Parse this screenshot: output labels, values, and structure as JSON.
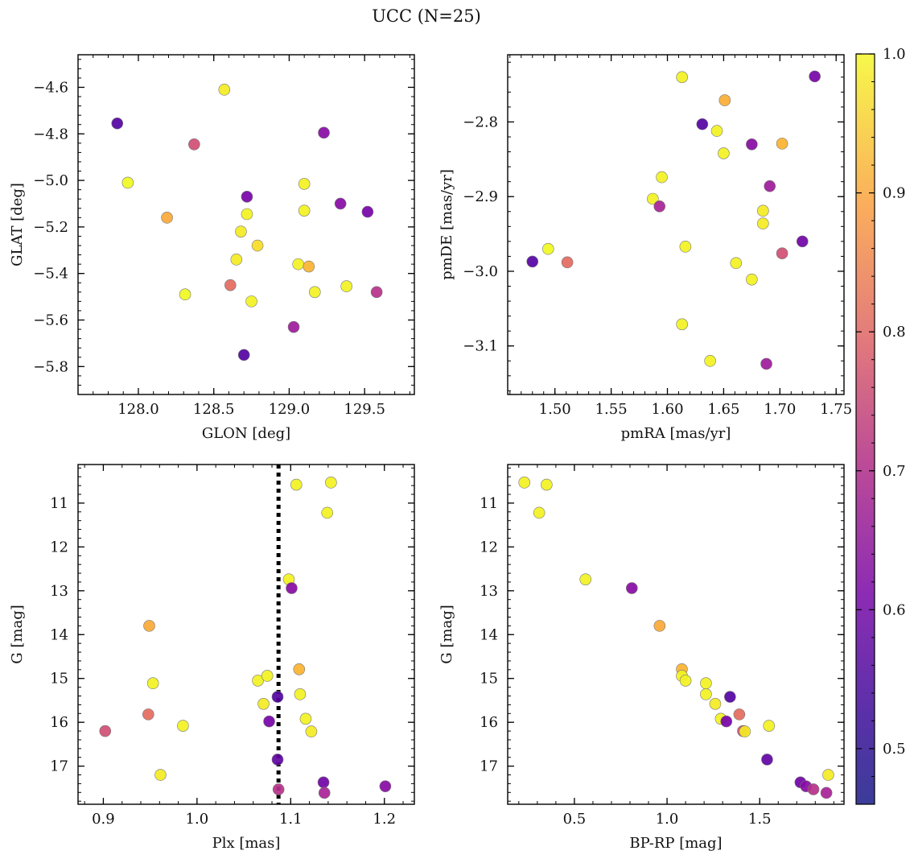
{
  "figure": {
    "title": "UCC (N=25)"
  },
  "colorbar": {
    "range": [
      0.46,
      1.0
    ],
    "ticks": [
      0.5,
      0.6,
      0.7,
      0.8,
      0.9,
      1.0
    ],
    "tick_labels": [
      "0.5",
      "0.6",
      "0.7",
      "0.8",
      "0.9",
      "1.0"
    ],
    "colormap": "plasma"
  },
  "chart_data": [
    {
      "type": "scatter",
      "id": "glon-glat",
      "xlabel": "GLON [deg]",
      "ylabel": "GLAT [deg]",
      "xlim": [
        127.6,
        129.83
      ],
      "ylim": [
        -5.92,
        -4.46
      ],
      "y_inverted": false,
      "xticks": [
        128.0,
        128.5,
        129.0,
        129.5
      ],
      "xtick_labels": [
        "128.0",
        "128.5",
        "129.0",
        "129.5"
      ],
      "yticks": [
        -4.6,
        -4.8,
        -5.0,
        -5.2,
        -5.4,
        -5.6,
        -5.8
      ],
      "ytick_labels": [
        "−4.6",
        "−4.8",
        "−5.0",
        "−5.2",
        "−5.4",
        "−5.6",
        "−5.8"
      ],
      "grid": false,
      "points": [
        {
          "x": 127.86,
          "y": -4.755,
          "p": 0.48
        },
        {
          "x": 127.93,
          "y": -5.01,
          "p": 1.0
        },
        {
          "x": 128.19,
          "y": -5.16,
          "p": 0.88
        },
        {
          "x": 128.31,
          "y": -5.49,
          "p": 1.0
        },
        {
          "x": 128.37,
          "y": -4.845,
          "p": 0.71
        },
        {
          "x": 128.57,
          "y": -4.61,
          "p": 0.98
        },
        {
          "x": 128.61,
          "y": -5.45,
          "p": 0.77
        },
        {
          "x": 128.65,
          "y": -5.34,
          "p": 0.98
        },
        {
          "x": 128.68,
          "y": -5.22,
          "p": 0.98
        },
        {
          "x": 128.7,
          "y": -5.75,
          "p": 0.48
        },
        {
          "x": 128.72,
          "y": -5.07,
          "p": 0.53
        },
        {
          "x": 128.72,
          "y": -5.145,
          "p": 0.99
        },
        {
          "x": 128.75,
          "y": -5.52,
          "p": 0.99
        },
        {
          "x": 128.79,
          "y": -5.28,
          "p": 0.96
        },
        {
          "x": 129.03,
          "y": -5.63,
          "p": 0.6
        },
        {
          "x": 129.06,
          "y": -5.36,
          "p": 0.99
        },
        {
          "x": 129.1,
          "y": -5.015,
          "p": 0.99
        },
        {
          "x": 129.1,
          "y": -5.13,
          "p": 0.99
        },
        {
          "x": 129.13,
          "y": -5.37,
          "p": 0.9
        },
        {
          "x": 129.17,
          "y": -5.48,
          "p": 0.99
        },
        {
          "x": 129.23,
          "y": -4.795,
          "p": 0.56
        },
        {
          "x": 129.34,
          "y": -5.1,
          "p": 0.56
        },
        {
          "x": 129.38,
          "y": -5.455,
          "p": 0.99
        },
        {
          "x": 129.52,
          "y": -5.135,
          "p": 0.53
        },
        {
          "x": 129.58,
          "y": -5.48,
          "p": 0.65
        }
      ]
    },
    {
      "type": "scatter",
      "id": "pmra-pmde",
      "xlabel": "pmRA [mas/yr]",
      "ylabel": "pmDE [mas/yr]",
      "xlim": [
        1.458,
        1.757
      ],
      "ylim": [
        -3.165,
        -2.71
      ],
      "y_inverted": false,
      "xticks": [
        1.5,
        1.55,
        1.6,
        1.65,
        1.7,
        1.75
      ],
      "xtick_labels": [
        "1.50",
        "1.55",
        "1.60",
        "1.65",
        "1.70",
        "1.75"
      ],
      "yticks": [
        -2.8,
        -2.9,
        -3.0,
        -3.1
      ],
      "ytick_labels": [
        "−2.8",
        "−2.9",
        "−3.0",
        "−3.1"
      ],
      "grid": false,
      "points": [
        {
          "x": 1.48,
          "y": -2.987,
          "p": 0.48
        },
        {
          "x": 1.494,
          "y": -2.97,
          "p": 1.0
        },
        {
          "x": 1.511,
          "y": -2.988,
          "p": 0.77
        },
        {
          "x": 1.587,
          "y": -2.903,
          "p": 0.99
        },
        {
          "x": 1.593,
          "y": -2.913,
          "p": 0.62
        },
        {
          "x": 1.595,
          "y": -2.874,
          "p": 0.99
        },
        {
          "x": 1.613,
          "y": -2.74,
          "p": 0.99
        },
        {
          "x": 1.613,
          "y": -3.071,
          "p": 0.99
        },
        {
          "x": 1.616,
          "y": -2.967,
          "p": 0.99
        },
        {
          "x": 1.631,
          "y": -2.803,
          "p": 0.48
        },
        {
          "x": 1.638,
          "y": -3.12,
          "p": 0.99
        },
        {
          "x": 1.644,
          "y": -2.812,
          "p": 0.99
        },
        {
          "x": 1.65,
          "y": -2.842,
          "p": 0.99
        },
        {
          "x": 1.651,
          "y": -2.771,
          "p": 0.89
        },
        {
          "x": 1.661,
          "y": -2.989,
          "p": 0.99
        },
        {
          "x": 1.675,
          "y": -2.83,
          "p": 0.56
        },
        {
          "x": 1.675,
          "y": -3.011,
          "p": 0.99
        },
        {
          "x": 1.685,
          "y": -2.919,
          "p": 0.98
        },
        {
          "x": 1.685,
          "y": -2.936,
          "p": 0.98
        },
        {
          "x": 1.688,
          "y": -3.124,
          "p": 0.6
        },
        {
          "x": 1.691,
          "y": -2.886,
          "p": 0.6
        },
        {
          "x": 1.702,
          "y": -2.829,
          "p": 0.9
        },
        {
          "x": 1.702,
          "y": -2.976,
          "p": 0.71
        },
        {
          "x": 1.72,
          "y": -2.96,
          "p": 0.52
        },
        {
          "x": 1.731,
          "y": -2.739,
          "p": 0.53
        }
      ]
    },
    {
      "type": "scatter",
      "id": "plx-g",
      "xlabel": "Plx [mas]",
      "ylabel": "G [mag]",
      "xlim": [
        0.873,
        1.232
      ],
      "ylim": [
        10.12,
        17.87
      ],
      "y_inverted": true,
      "xticks": [
        0.9,
        1.0,
        1.1,
        1.2
      ],
      "xtick_labels": [
        "0.9",
        "1.0",
        "1.1",
        "1.2"
      ],
      "yticks": [
        11,
        12,
        13,
        14,
        15,
        16,
        17
      ],
      "ytick_labels": [
        "11",
        "12",
        "13",
        "14",
        "15",
        "16",
        "17"
      ],
      "grid": false,
      "vline": {
        "x": 1.087,
        "style": "dotted"
      },
      "points": [
        {
          "x": 0.902,
          "y": 16.2,
          "p": 0.71
        },
        {
          "x": 0.948,
          "y": 15.82,
          "p": 0.77
        },
        {
          "x": 0.949,
          "y": 13.8,
          "p": 0.88
        },
        {
          "x": 0.953,
          "y": 15.11,
          "p": 0.99
        },
        {
          "x": 0.961,
          "y": 17.2,
          "p": 0.98
        },
        {
          "x": 0.985,
          "y": 16.08,
          "p": 0.99
        },
        {
          "x": 1.065,
          "y": 15.05,
          "p": 0.99
        },
        {
          "x": 1.071,
          "y": 15.58,
          "p": 0.98
        },
        {
          "x": 1.075,
          "y": 14.94,
          "p": 0.99
        },
        {
          "x": 1.077,
          "y": 15.98,
          "p": 0.53
        },
        {
          "x": 1.086,
          "y": 15.42,
          "p": 0.48
        },
        {
          "x": 1.086,
          "y": 16.85,
          "p": 0.5
        },
        {
          "x": 1.087,
          "y": 17.53,
          "p": 0.65
        },
        {
          "x": 1.098,
          "y": 12.74,
          "p": 0.99
        },
        {
          "x": 1.101,
          "y": 12.94,
          "p": 0.56
        },
        {
          "x": 1.106,
          "y": 10.58,
          "p": 0.99
        },
        {
          "x": 1.109,
          "y": 14.79,
          "p": 0.9
        },
        {
          "x": 1.11,
          "y": 15.36,
          "p": 0.99
        },
        {
          "x": 1.116,
          "y": 15.92,
          "p": 0.99
        },
        {
          "x": 1.122,
          "y": 16.21,
          "p": 0.98
        },
        {
          "x": 1.135,
          "y": 17.37,
          "p": 0.52
        },
        {
          "x": 1.136,
          "y": 17.61,
          "p": 0.62
        },
        {
          "x": 1.139,
          "y": 11.22,
          "p": 0.99
        },
        {
          "x": 1.143,
          "y": 10.53,
          "p": 0.99
        },
        {
          "x": 1.201,
          "y": 17.46,
          "p": 0.56
        }
      ]
    },
    {
      "type": "scatter",
      "id": "bprp-g",
      "xlabel": "BP-RP [mag]",
      "ylabel": "G [mag]",
      "xlim": [
        0.14,
        1.955
      ],
      "ylim": [
        10.12,
        17.87
      ],
      "y_inverted": true,
      "xticks": [
        0.5,
        1.0,
        1.5
      ],
      "xtick_labels": [
        "0.5",
        "1.0",
        "1.5"
      ],
      "yticks": [
        11,
        12,
        13,
        14,
        15,
        16,
        17
      ],
      "ytick_labels": [
        "11",
        "12",
        "13",
        "14",
        "15",
        "16",
        "17"
      ],
      "grid": false,
      "points": [
        {
          "x": 0.23,
          "y": 10.53,
          "p": 0.99
        },
        {
          "x": 0.31,
          "y": 11.22,
          "p": 0.99
        },
        {
          "x": 0.35,
          "y": 10.58,
          "p": 0.99
        },
        {
          "x": 0.56,
          "y": 12.74,
          "p": 0.99
        },
        {
          "x": 0.81,
          "y": 12.94,
          "p": 0.56
        },
        {
          "x": 0.96,
          "y": 13.8,
          "p": 0.88
        },
        {
          "x": 1.08,
          "y": 14.79,
          "p": 0.9
        },
        {
          "x": 1.08,
          "y": 14.94,
          "p": 0.99
        },
        {
          "x": 1.1,
          "y": 15.05,
          "p": 0.99
        },
        {
          "x": 1.21,
          "y": 15.11,
          "p": 0.99
        },
        {
          "x": 1.21,
          "y": 15.36,
          "p": 0.99
        },
        {
          "x": 1.26,
          "y": 15.58,
          "p": 0.98
        },
        {
          "x": 1.29,
          "y": 15.92,
          "p": 0.99
        },
        {
          "x": 1.32,
          "y": 15.98,
          "p": 0.53
        },
        {
          "x": 1.34,
          "y": 15.42,
          "p": 0.48
        },
        {
          "x": 1.39,
          "y": 15.82,
          "p": 0.77
        },
        {
          "x": 1.41,
          "y": 16.2,
          "p": 0.71
        },
        {
          "x": 1.42,
          "y": 16.21,
          "p": 0.98
        },
        {
          "x": 1.54,
          "y": 16.85,
          "p": 0.5
        },
        {
          "x": 1.55,
          "y": 16.08,
          "p": 0.99
        },
        {
          "x": 1.72,
          "y": 17.37,
          "p": 0.52
        },
        {
          "x": 1.75,
          "y": 17.46,
          "p": 0.56
        },
        {
          "x": 1.79,
          "y": 17.53,
          "p": 0.65
        },
        {
          "x": 1.86,
          "y": 17.61,
          "p": 0.62
        },
        {
          "x": 1.87,
          "y": 17.2,
          "p": 0.98
        }
      ]
    }
  ]
}
